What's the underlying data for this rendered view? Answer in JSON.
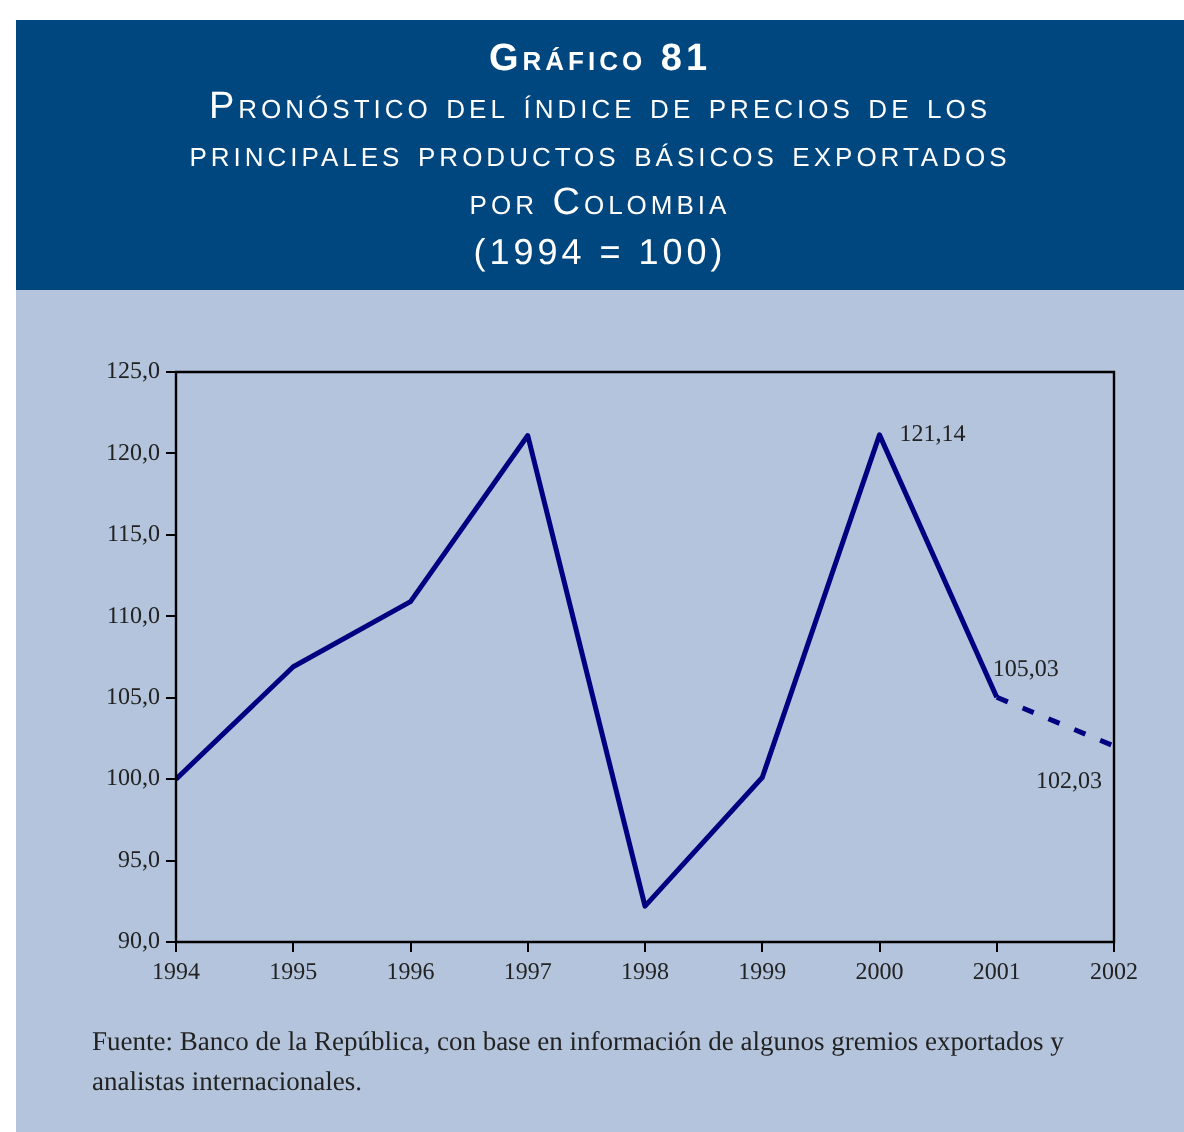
{
  "chart_data": {
    "type": "line",
    "title": "Gráfico 81",
    "subtitle": "Pronóstico del índice de precios de los principales productos básicos exportados por Colombia",
    "annotations": [
      "(1994 = 100)",
      "Fuente: Banco de la República, con base en información de algunos gremios exportados y analistas internacionales."
    ],
    "xlim": [
      1994,
      2002
    ],
    "xticks": [
      1994,
      1995,
      1996,
      1997,
      1998,
      1999,
      2000,
      2001,
      2002
    ],
    "ylim": [
      90,
      125
    ],
    "yticks": [
      {
        "value": 90,
        "label": "90,0"
      },
      {
        "value": 95,
        "label": "95,0"
      },
      {
        "value": 100,
        "label": "100,0"
      },
      {
        "value": 105,
        "label": "105,0"
      },
      {
        "value": 110,
        "label": "110,0"
      },
      {
        "value": 115,
        "label": "115,0"
      },
      {
        "value": 120,
        "label": "120,0"
      },
      {
        "value": 125,
        "label": "125,0"
      }
    ],
    "grid": false,
    "legend": false,
    "marker": "none",
    "series": [
      {
        "color": "#000080",
        "line_style": "solid",
        "x": [
          1994,
          1995,
          1996,
          1997,
          1998,
          1999,
          2000,
          2001
        ],
        "values": [
          100,
          106.9,
          110.9,
          121.1,
          92.2,
          100.1,
          121.14,
          105.03
        ],
        "value_labels": [
          null,
          null,
          null,
          null,
          null,
          null,
          "121,14",
          "105,03"
        ]
      },
      {
        "color": "#000080",
        "line_style": "dashed",
        "x": [
          2001,
          2002
        ],
        "values": [
          105.03,
          102.03
        ],
        "value_labels": [
          null,
          "102,03"
        ]
      }
    ]
  }
}
